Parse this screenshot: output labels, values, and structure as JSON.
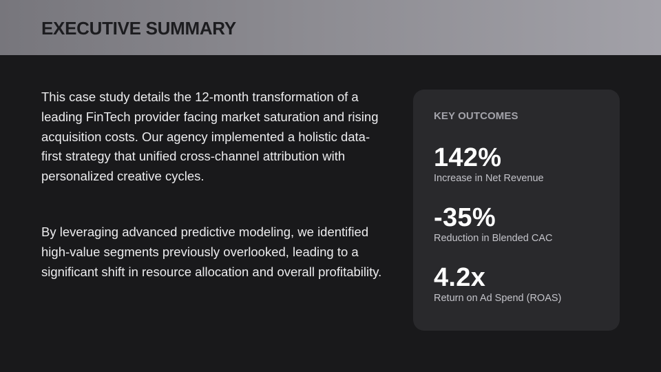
{
  "header": {
    "title": "EXECUTIVE SUMMARY"
  },
  "body": {
    "paragraphs": [
      "This case study details the 12-month transformation of a leading FinTech provider facing market saturation and rising acquisition costs. Our agency implemented a holistic data-first strategy that unified cross-channel attribution with personalized creative cycles.",
      "By leveraging advanced predictive modeling, we identified high-value segments previously overlooked, leading to a significant shift in resource allocation and overall profitability."
    ]
  },
  "outcomes": {
    "label": "KEY OUTCOMES",
    "metrics": [
      {
        "value": "142%",
        "caption": "Increase in Net Revenue"
      },
      {
        "value": "-35%",
        "caption": "Reduction in Blended CAC"
      },
      {
        "value": "4.2x",
        "caption": "Return on Ad Spend (ROAS)"
      }
    ]
  },
  "colors": {
    "background": "#19191b",
    "header_gradient_start": "#77767c",
    "header_gradient_end": "#a2a1a8",
    "card_background": "#29292c",
    "title_text": "#1c1c1f",
    "body_text": "#ececee",
    "muted_label": "#a3a3aa"
  }
}
